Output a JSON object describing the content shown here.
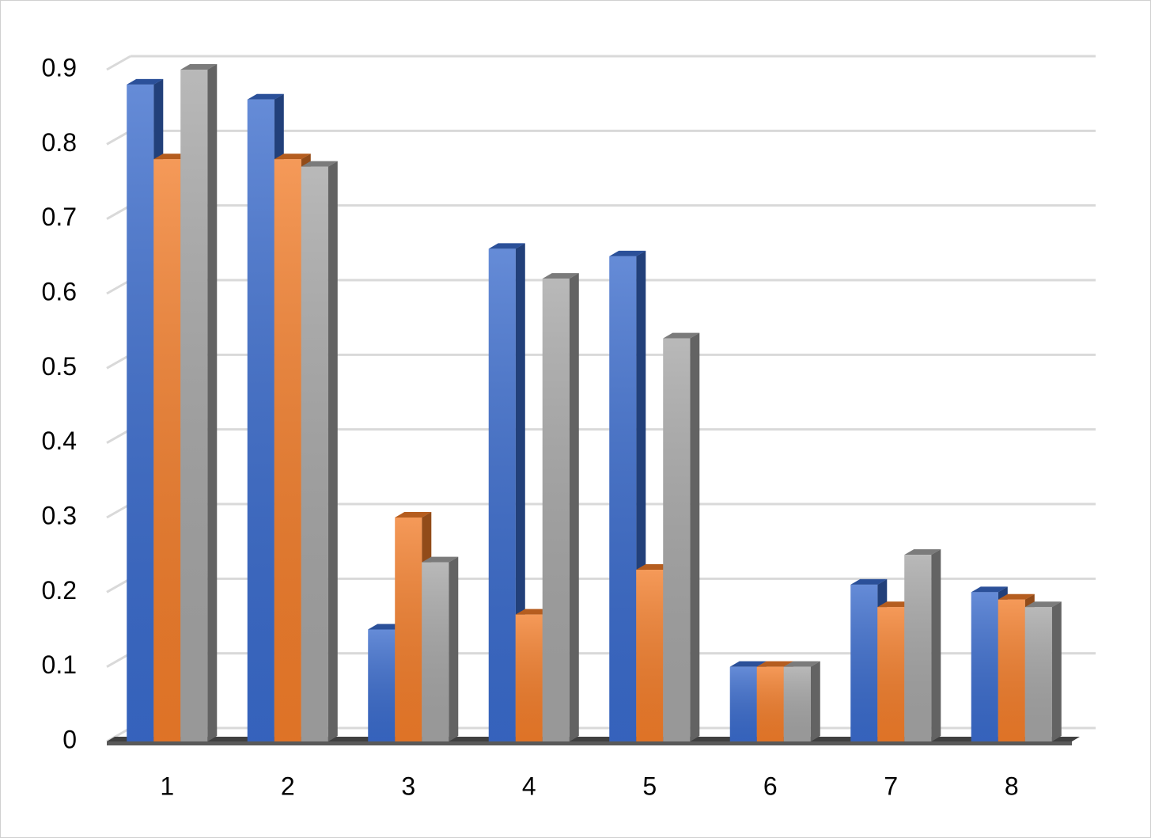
{
  "chart_data": {
    "type": "bar3d",
    "categories": [
      "1",
      "2",
      "3",
      "4",
      "5",
      "6",
      "7",
      "8"
    ],
    "series": [
      {
        "color": "#3a6bcc",
        "values": [
          0.88,
          0.86,
          0.15,
          0.66,
          0.65,
          0.1,
          0.21,
          0.2
        ]
      },
      {
        "color": "#f27d2a",
        "values": [
          0.78,
          0.78,
          0.3,
          0.17,
          0.23,
          0.1,
          0.18,
          0.19
        ]
      },
      {
        "color": "#a5a5a5",
        "values": [
          0.9,
          0.77,
          0.24,
          0.62,
          0.54,
          0.1,
          0.25,
          0.18
        ]
      }
    ],
    "ylim": [
      0,
      0.9
    ],
    "yticks": [
      0,
      0.1,
      0.2,
      0.3,
      0.4,
      0.5,
      0.6,
      0.7,
      0.8,
      0.9
    ],
    "grid": true
  }
}
